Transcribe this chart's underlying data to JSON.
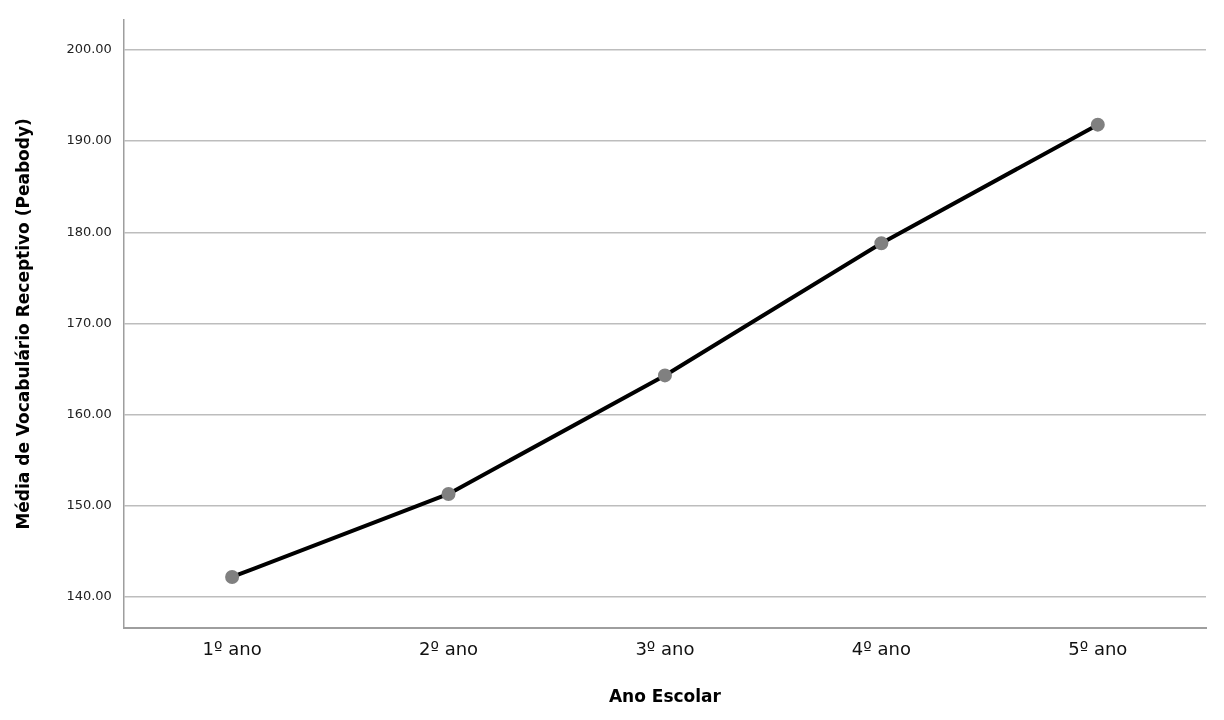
{
  "chart_data": {
    "type": "line",
    "xlabel": "Ano Escolar",
    "ylabel": "Média de Vocabulário Receptivo (Peabody)",
    "categories": [
      "1º ano",
      "2º ano",
      "3º ano",
      "4º ano",
      "5º ano"
    ],
    "series": [
      {
        "color": "#000000",
        "values": [
          142.2,
          151.3,
          164.3,
          178.8,
          191.8
        ]
      }
    ],
    "ylim": [
      136.6,
      203.3
    ],
    "yticks": [
      {
        "value": 140,
        "label": "140.00"
      },
      {
        "value": 150,
        "label": "150.00"
      },
      {
        "value": 160,
        "label": "160.00"
      },
      {
        "value": 170,
        "label": "170.00"
      },
      {
        "value": 180,
        "label": "180.00"
      },
      {
        "value": 190,
        "label": "190.00"
      },
      {
        "value": 200,
        "label": "200.00"
      }
    ],
    "grid": "y",
    "legend": false,
    "marker": "circle",
    "line_style": "solid"
  }
}
